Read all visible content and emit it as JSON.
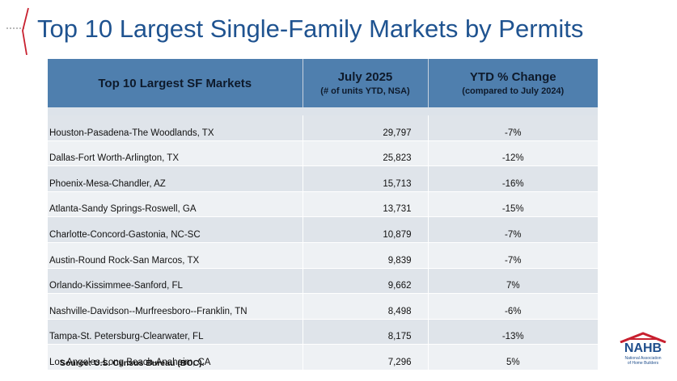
{
  "title": "Top 10 Largest Single-Family Markets by Permits",
  "table": {
    "headers": {
      "market": "Top 10 Largest SF Markets",
      "units": "July 2025",
      "units_sub": "(# of units YTD, NSA)",
      "change": "YTD % Change",
      "change_sub": "(compared to July 2024)"
    },
    "rows": [
      {
        "market": "Houston-Pasadena-The Woodlands, TX",
        "units": "29,797",
        "change": "-7%"
      },
      {
        "market": "Dallas-Fort Worth-Arlington, TX",
        "units": "25,823",
        "change": "-12%"
      },
      {
        "market": "Phoenix-Mesa-Chandler, AZ",
        "units": "15,713",
        "change": "-16%"
      },
      {
        "market": "Atlanta-Sandy Springs-Roswell, GA",
        "units": "13,731",
        "change": "-15%"
      },
      {
        "market": "Charlotte-Concord-Gastonia, NC-SC",
        "units": "10,879",
        "change": "-7%"
      },
      {
        "market": "Austin-Round Rock-San Marcos, TX",
        "units": "9,839",
        "change": "-7%"
      },
      {
        "market": "Orlando-Kissimmee-Sanford, FL",
        "units": "9,662",
        "change": "7%"
      },
      {
        "market": "Nashville-Davidson--Murfreesboro--Franklin, TN",
        "units": "8,498",
        "change": "-6%"
      },
      {
        "market": "Tampa-St. Petersburg-Clearwater, FL",
        "units": "8,175",
        "change": "-13%"
      },
      {
        "market": "Los Angeles-Long Beach-Anaheim, CA",
        "units": "7,296",
        "change": "5%"
      }
    ]
  },
  "source": "Source: U.S. Census Bureau (BOC).",
  "logo": {
    "name": "NAHB",
    "line1": "National Association",
    "line2": "of Home Builders"
  },
  "colors": {
    "title": "#1f5390",
    "header_bg": "#4f7fae",
    "row_light": "#eef1f4",
    "row_dark": "#dfe4ea",
    "accent_red": "#c8202f"
  }
}
